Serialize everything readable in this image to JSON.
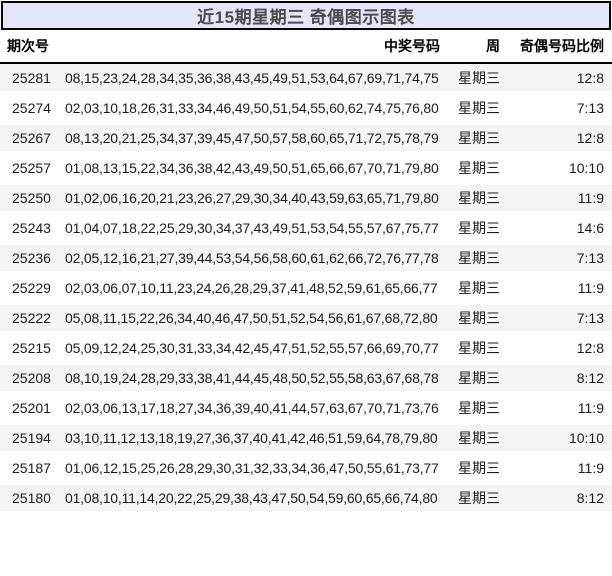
{
  "title": "近15期星期三 奇偶图示图表",
  "colors": {
    "title_bar_bg": "#e6e6fa",
    "title_bar_border": "#000000",
    "row_stripe": "#f5f5f5",
    "header_rule": "#000000"
  },
  "table": {
    "headers": {
      "period": "期次号",
      "numbers": "中奖号码",
      "week": "周",
      "ratio": "奇偶号码比例"
    },
    "rows": [
      {
        "period": "25281",
        "numbers": "08,15,23,24,28,34,35,36,38,43,45,49,51,53,64,67,69,71,74,75",
        "week": "星期三",
        "ratio": "12:8"
      },
      {
        "period": "25274",
        "numbers": "02,03,10,18,26,31,33,34,46,49,50,51,54,55,60,62,74,75,76,80",
        "week": "星期三",
        "ratio": "7:13"
      },
      {
        "period": "25267",
        "numbers": "08,13,20,21,25,34,37,39,45,47,50,57,58,60,65,71,72,75,78,79",
        "week": "星期三",
        "ratio": "12:8"
      },
      {
        "period": "25257",
        "numbers": "01,08,13,15,22,34,36,38,42,43,49,50,51,65,66,67,70,71,79,80",
        "week": "星期三",
        "ratio": "10:10"
      },
      {
        "period": "25250",
        "numbers": "01,02,06,16,20,21,23,26,27,29,30,34,40,43,59,63,65,71,79,80",
        "week": "星期三",
        "ratio": "11:9"
      },
      {
        "period": "25243",
        "numbers": "01,04,07,18,22,25,29,30,34,37,43,49,51,53,54,55,57,67,75,77",
        "week": "星期三",
        "ratio": "14:6"
      },
      {
        "period": "25236",
        "numbers": "02,05,12,16,21,27,39,44,53,54,56,58,60,61,62,66,72,76,77,78",
        "week": "星期三",
        "ratio": "7:13"
      },
      {
        "period": "25229",
        "numbers": "02,03,06,07,10,11,23,24,26,28,29,37,41,48,52,59,61,65,66,77",
        "week": "星期三",
        "ratio": "11:9"
      },
      {
        "period": "25222",
        "numbers": "05,08,11,15,22,26,34,40,46,47,50,51,52,54,56,61,67,68,72,80",
        "week": "星期三",
        "ratio": "7:13"
      },
      {
        "period": "25215",
        "numbers": "05,09,12,24,25,30,31,33,34,42,45,47,51,52,55,57,66,69,70,77",
        "week": "星期三",
        "ratio": "12:8"
      },
      {
        "period": "25208",
        "numbers": "08,10,19,24,28,29,33,38,41,44,45,48,50,52,55,58,63,67,68,78",
        "week": "星期三",
        "ratio": "8:12"
      },
      {
        "period": "25201",
        "numbers": "02,03,06,13,17,18,27,34,36,39,40,41,44,57,63,67,70,71,73,76",
        "week": "星期三",
        "ratio": "11:9"
      },
      {
        "period": "25194",
        "numbers": "03,10,11,12,13,18,19,27,36,37,40,41,42,46,51,59,64,78,79,80",
        "week": "星期三",
        "ratio": "10:10"
      },
      {
        "period": "25187",
        "numbers": "01,06,12,15,25,26,28,29,30,31,32,33,34,36,47,50,55,61,73,77",
        "week": "星期三",
        "ratio": "11:9"
      },
      {
        "period": "25180",
        "numbers": "01,08,10,11,14,20,22,25,29,38,43,47,50,54,59,60,65,66,74,80",
        "week": "星期三",
        "ratio": "8:12"
      }
    ]
  }
}
